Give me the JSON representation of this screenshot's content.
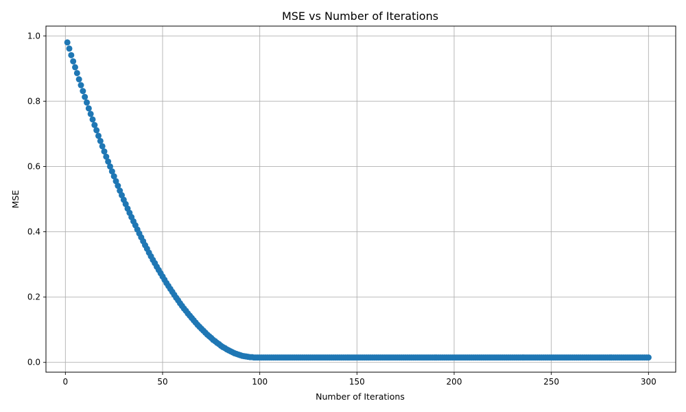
{
  "chart_data": {
    "type": "scatter",
    "title": "MSE vs Number of Iterations",
    "xlabel": "Number of Iterations",
    "ylabel": "MSE",
    "xlim": [
      -10,
      314
    ],
    "ylim": [
      -0.03,
      1.03
    ],
    "xticks": [
      0,
      50,
      100,
      150,
      200,
      250,
      300
    ],
    "yticks": [
      0.0,
      0.2,
      0.4,
      0.6,
      0.8,
      1.0
    ],
    "xtick_labels": [
      "0",
      "50",
      "100",
      "150",
      "200",
      "250",
      "300"
    ],
    "ytick_labels": [
      "0.0",
      "0.2",
      "0.4",
      "0.6",
      "0.8",
      "1.0"
    ],
    "grid": true,
    "marker_color": "#1f77b4",
    "series": [
      {
        "points": [
          [
            1,
            0.98
          ],
          [
            2,
            0.961
          ],
          [
            3,
            0.941
          ],
          [
            4,
            0.922
          ],
          [
            5,
            0.904
          ],
          [
            6,
            0.886
          ],
          [
            7,
            0.867
          ],
          [
            8,
            0.849
          ],
          [
            9,
            0.831
          ],
          [
            10,
            0.813
          ],
          [
            11,
            0.796
          ],
          [
            12,
            0.778
          ],
          [
            13,
            0.761
          ],
          [
            14,
            0.744
          ],
          [
            15,
            0.727
          ],
          [
            16,
            0.711
          ],
          [
            17,
            0.694
          ],
          [
            18,
            0.678
          ],
          [
            19,
            0.662
          ],
          [
            20,
            0.646
          ],
          [
            21,
            0.63
          ],
          [
            22,
            0.615
          ],
          [
            23,
            0.6
          ],
          [
            24,
            0.585
          ],
          [
            25,
            0.57
          ],
          [
            26,
            0.555
          ],
          [
            27,
            0.541
          ],
          [
            28,
            0.526
          ],
          [
            29,
            0.512
          ],
          [
            30,
            0.498
          ],
          [
            31,
            0.485
          ],
          [
            32,
            0.471
          ],
          [
            33,
            0.458
          ],
          [
            34,
            0.445
          ],
          [
            35,
            0.432
          ],
          [
            36,
            0.42
          ],
          [
            37,
            0.407
          ],
          [
            38,
            0.395
          ],
          [
            39,
            0.383
          ],
          [
            40,
            0.371
          ],
          [
            41,
            0.359
          ],
          [
            42,
            0.348
          ],
          [
            43,
            0.336
          ],
          [
            44,
            0.325
          ],
          [
            45,
            0.314
          ],
          [
            46,
            0.304
          ],
          [
            47,
            0.293
          ],
          [
            48,
            0.283
          ],
          [
            49,
            0.273
          ],
          [
            50,
            0.263
          ],
          [
            51,
            0.253
          ],
          [
            52,
            0.243
          ],
          [
            53,
            0.234
          ],
          [
            54,
            0.225
          ],
          [
            55,
            0.216
          ],
          [
            56,
            0.207
          ],
          [
            57,
            0.198
          ],
          [
            58,
            0.19
          ],
          [
            59,
            0.181
          ],
          [
            60,
            0.173
          ],
          [
            61,
            0.165
          ],
          [
            62,
            0.158
          ],
          [
            63,
            0.15
          ],
          [
            64,
            0.143
          ],
          [
            65,
            0.136
          ],
          [
            66,
            0.129
          ],
          [
            67,
            0.122
          ],
          [
            68,
            0.115
          ],
          [
            69,
            0.109
          ],
          [
            70,
            0.103
          ],
          [
            71,
            0.097
          ],
          [
            72,
            0.091
          ],
          [
            73,
            0.085
          ],
          [
            74,
            0.08
          ],
          [
            75,
            0.075
          ],
          [
            76,
            0.069
          ],
          [
            77,
            0.065
          ],
          [
            78,
            0.06
          ],
          [
            79,
            0.056
          ],
          [
            80,
            0.051
          ],
          [
            81,
            0.047
          ],
          [
            82,
            0.044
          ],
          [
            83,
            0.04
          ],
          [
            84,
            0.037
          ],
          [
            85,
            0.034
          ],
          [
            86,
            0.031
          ],
          [
            87,
            0.028
          ],
          [
            88,
            0.026
          ],
          [
            89,
            0.024
          ],
          [
            90,
            0.022
          ],
          [
            91,
            0.02
          ],
          [
            92,
            0.019
          ],
          [
            93,
            0.018
          ],
          [
            94,
            0.017
          ],
          [
            95,
            0.016
          ],
          [
            96,
            0.016
          ],
          [
            97,
            0.015
          ],
          [
            98,
            0.015
          ],
          [
            99,
            0.015
          ],
          [
            100,
            0.015
          ]
        ],
        "plateau": {
          "from": 101,
          "to": 300,
          "value": 0.015
        }
      }
    ]
  }
}
